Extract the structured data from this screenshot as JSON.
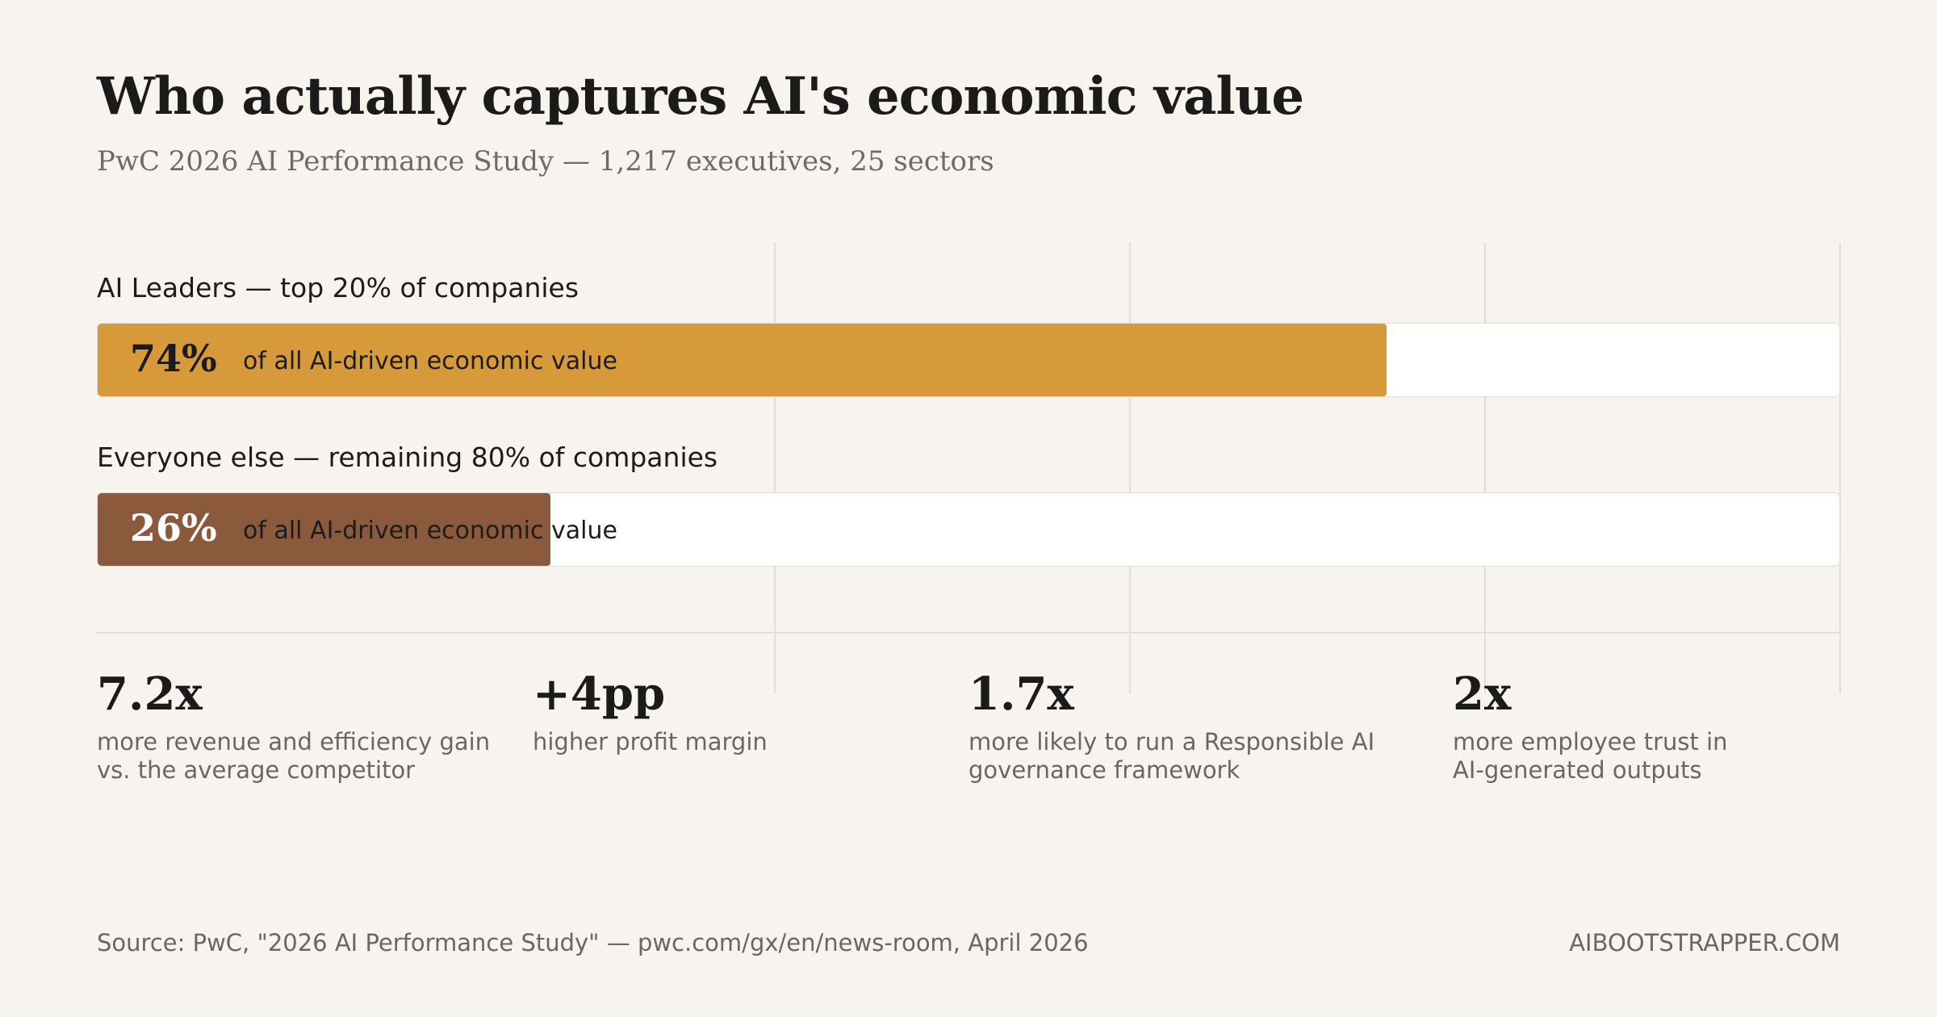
{
  "header": {
    "title": "Who actually captures AI's economic value",
    "subtitle": "PwC 2026 AI Performance Study — 1,217 executives, 25 sectors"
  },
  "chart_data": {
    "type": "bar",
    "orientation": "horizontal",
    "title": "Who actually captures AI's economic value",
    "subtitle": "PwC 2026 AI Performance Study — 1,217 executives, 25 sectors",
    "categories": [
      "AI Leaders — top 20% of companies",
      "Everyone else — remaining 80% of companies"
    ],
    "values": [
      74,
      26
    ],
    "value_labels": [
      "74%",
      "26%"
    ],
    "value_description": "of all AI-driven economic value",
    "xlim": [
      0,
      100
    ],
    "grid": true,
    "colors": [
      "#d69a3a",
      "#8b5a3c"
    ]
  },
  "bars": [
    {
      "label": "AI Leaders — top 20% of companies",
      "value": 74,
      "value_label": "74%",
      "description": "of all AI-driven economic value",
      "color": "#d69a3a",
      "value_text_color": "#1b1b1b"
    },
    {
      "label": "Everyone else — remaining 80% of companies",
      "value": 26,
      "value_label": "26%",
      "description": "of all AI-driven economic value",
      "color": "#8b5a3c",
      "value_text_color": "#ffffff"
    }
  ],
  "stats": [
    {
      "value": "7.2x",
      "desc": "more revenue and efficiency gain\nvs. the average competitor"
    },
    {
      "value": "+4pp",
      "desc": "higher profit margin"
    },
    {
      "value": "1.7x",
      "desc": "more likely to run a Responsible AI\ngovernance framework"
    },
    {
      "value": "2x",
      "desc": "more employee trust in\nAI-generated outputs"
    }
  ],
  "footer": {
    "source": "Source: PwC, \"2026 AI Performance Study\" — pwc.com/gx/en/news-room, April 2026",
    "brand": "AIBOOTSTRAPPER.COM"
  },
  "colors": {
    "background": "#f7f4ef",
    "leaders": "#d69a3a",
    "others": "#8b5a3c",
    "track": "#ffffff",
    "grid": "#e4dfd7"
  }
}
